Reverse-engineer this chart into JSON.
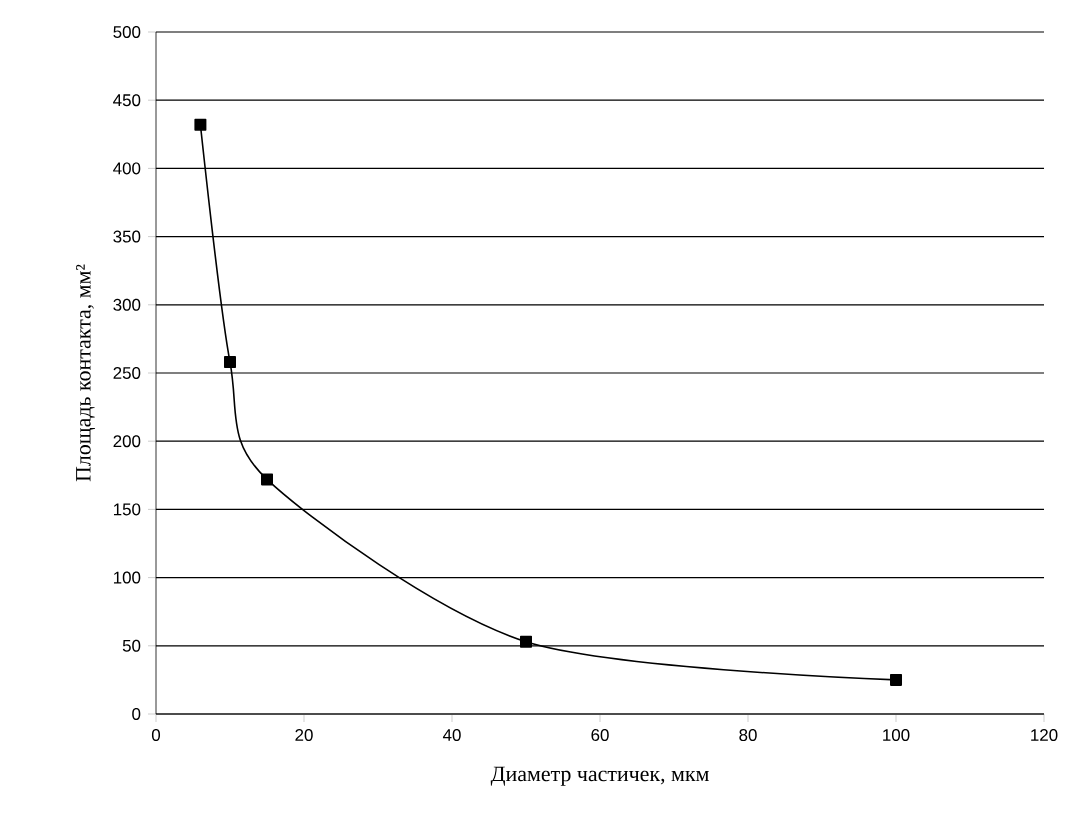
{
  "chart_data": {
    "type": "line",
    "xlabel": "Диаметр частичек, мкм",
    "ylabel": "Площадь контакта, мм²",
    "x": [
      6,
      10,
      15,
      50,
      100
    ],
    "series": [
      {
        "color": "#000000",
        "values": [
          432,
          258,
          172,
          53,
          25
        ]
      }
    ],
    "xlim": [
      0,
      120
    ],
    "ylim": [
      0,
      500
    ],
    "xticks": [
      0,
      20,
      40,
      60,
      80,
      100,
      120
    ],
    "yticks": [
      0,
      50,
      100,
      150,
      200,
      250,
      300,
      350,
      400,
      450,
      500
    ],
    "grid": "y",
    "marker": "square",
    "line_style": "solid"
  }
}
